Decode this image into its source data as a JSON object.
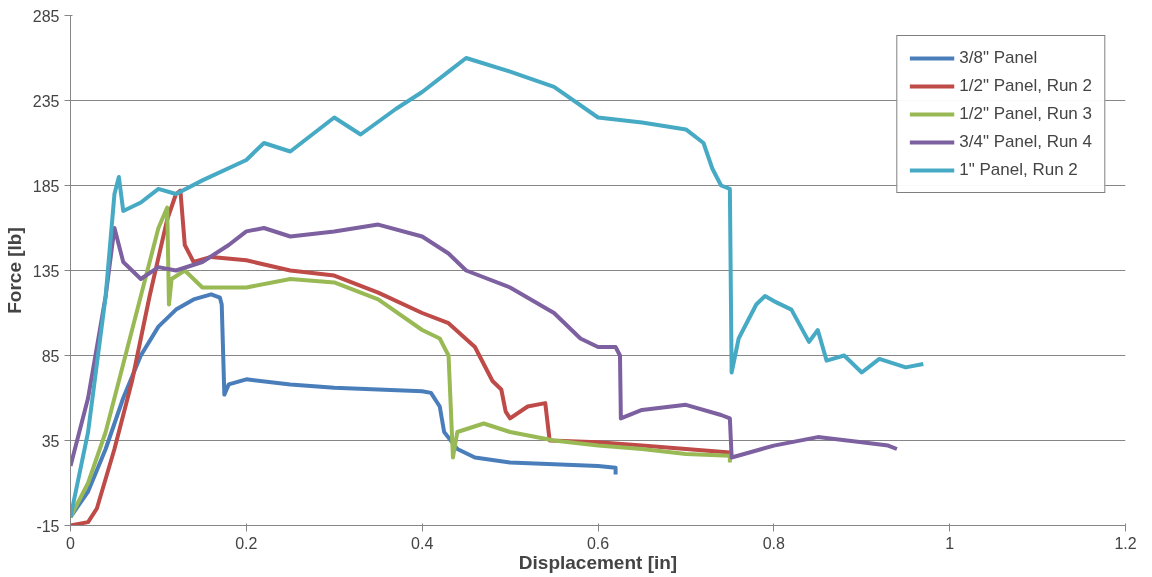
{
  "chart_data": {
    "type": "line",
    "xlabel": "Displacement [in]",
    "ylabel": "Force [lb]",
    "xlim": [
      0,
      1.2
    ],
    "xticks": [
      0,
      0.2,
      0.4,
      0.6,
      0.8,
      1,
      1.2
    ],
    "ylim": [
      -15,
      285
    ],
    "yticks": [
      -15,
      35,
      85,
      135,
      185,
      235,
      285
    ],
    "grid": "y",
    "legend": "top right",
    "marker": "none",
    "line_style": "solid",
    "series": [
      {
        "name": "3/8\" Panel",
        "color": "#4a7ebb",
        "x": [
          0,
          0.02,
          0.04,
          0.06,
          0.08,
          0.1,
          0.12,
          0.14,
          0.16,
          0.17,
          0.172,
          0.175,
          0.18,
          0.2,
          0.25,
          0.3,
          0.35,
          0.4,
          0.41,
          0.42,
          0.425,
          0.44,
          0.46,
          0.5,
          0.55,
          0.6,
          0.62,
          0.62
        ],
        "values": [
          -10,
          5,
          30,
          60,
          85,
          102,
          112,
          118,
          121,
          119,
          115,
          62,
          68,
          71,
          68,
          66,
          65,
          64,
          63,
          55,
          40,
          30,
          25,
          22,
          21,
          20,
          19,
          15
        ]
      },
      {
        "name": "1/2\" Panel, Run 2",
        "color": "#be4b48",
        "x": [
          0,
          0.02,
          0.03,
          0.05,
          0.07,
          0.09,
          0.11,
          0.12,
          0.125,
          0.13,
          0.14,
          0.16,
          0.2,
          0.25,
          0.3,
          0.35,
          0.4,
          0.43,
          0.46,
          0.48,
          0.49,
          0.495,
          0.5,
          0.52,
          0.54,
          0.545,
          0.6,
          0.65,
          0.7,
          0.75
        ],
        "values": [
          -15,
          -13,
          -5,
          30,
          70,
          120,
          165,
          180,
          182,
          150,
          140,
          143,
          141,
          135,
          132,
          122,
          110,
          104,
          90,
          70,
          65,
          52,
          48,
          55,
          57,
          35,
          34,
          32,
          30,
          28
        ]
      },
      {
        "name": "1/2\" Panel, Run 3",
        "color": "#98b954",
        "x": [
          0,
          0.02,
          0.04,
          0.06,
          0.08,
          0.1,
          0.11,
          0.112,
          0.115,
          0.13,
          0.15,
          0.2,
          0.25,
          0.3,
          0.35,
          0.4,
          0.42,
          0.43,
          0.435,
          0.44,
          0.47,
          0.5,
          0.55,
          0.6,
          0.65,
          0.7,
          0.75,
          0.75
        ],
        "values": [
          -10,
          10,
          40,
          80,
          120,
          160,
          172,
          115,
          130,
          135,
          125,
          125,
          130,
          128,
          118,
          100,
          95,
          85,
          25,
          40,
          45,
          40,
          35,
          32,
          30,
          27,
          26,
          22
        ]
      },
      {
        "name": "3/4\" Panel, Run 4",
        "color": "#7d60a0",
        "x": [
          0,
          0.02,
          0.04,
          0.05,
          0.055,
          0.06,
          0.07,
          0.08,
          0.1,
          0.12,
          0.15,
          0.18,
          0.2,
          0.22,
          0.25,
          0.3,
          0.35,
          0.4,
          0.43,
          0.45,
          0.5,
          0.55,
          0.58,
          0.6,
          0.62,
          0.625,
          0.626,
          0.65,
          0.7,
          0.74,
          0.75,
          0.752,
          0.8,
          0.85,
          0.9,
          0.93,
          0.94
        ],
        "values": [
          20,
          60,
          120,
          160,
          150,
          140,
          135,
          130,
          137,
          135,
          140,
          150,
          158,
          160,
          155,
          158,
          162,
          155,
          145,
          135,
          125,
          110,
          95,
          90,
          90,
          85,
          48,
          53,
          56,
          50,
          48,
          25,
          32,
          37,
          34,
          32,
          30
        ]
      },
      {
        "name": "1\" Panel, Run 2",
        "color": "#46aac5",
        "x": [
          0,
          0.02,
          0.04,
          0.05,
          0.055,
          0.06,
          0.08,
          0.1,
          0.12,
          0.15,
          0.2,
          0.22,
          0.25,
          0.3,
          0.33,
          0.37,
          0.4,
          0.43,
          0.45,
          0.5,
          0.55,
          0.6,
          0.65,
          0.7,
          0.72,
          0.73,
          0.74,
          0.75,
          0.752,
          0.76,
          0.78,
          0.79,
          0.8,
          0.82,
          0.84,
          0.85,
          0.86,
          0.88,
          0.9,
          0.92,
          0.95,
          0.97
        ],
        "values": [
          -10,
          40,
          120,
          180,
          190,
          170,
          175,
          183,
          180,
          188,
          200,
          210,
          205,
          225,
          215,
          230,
          240,
          252,
          260,
          252,
          243,
          225,
          222,
          218,
          210,
          195,
          185,
          183,
          75,
          95,
          115,
          120,
          117,
          112,
          93,
          100,
          82,
          85,
          75,
          83,
          78,
          80
        ]
      }
    ]
  }
}
